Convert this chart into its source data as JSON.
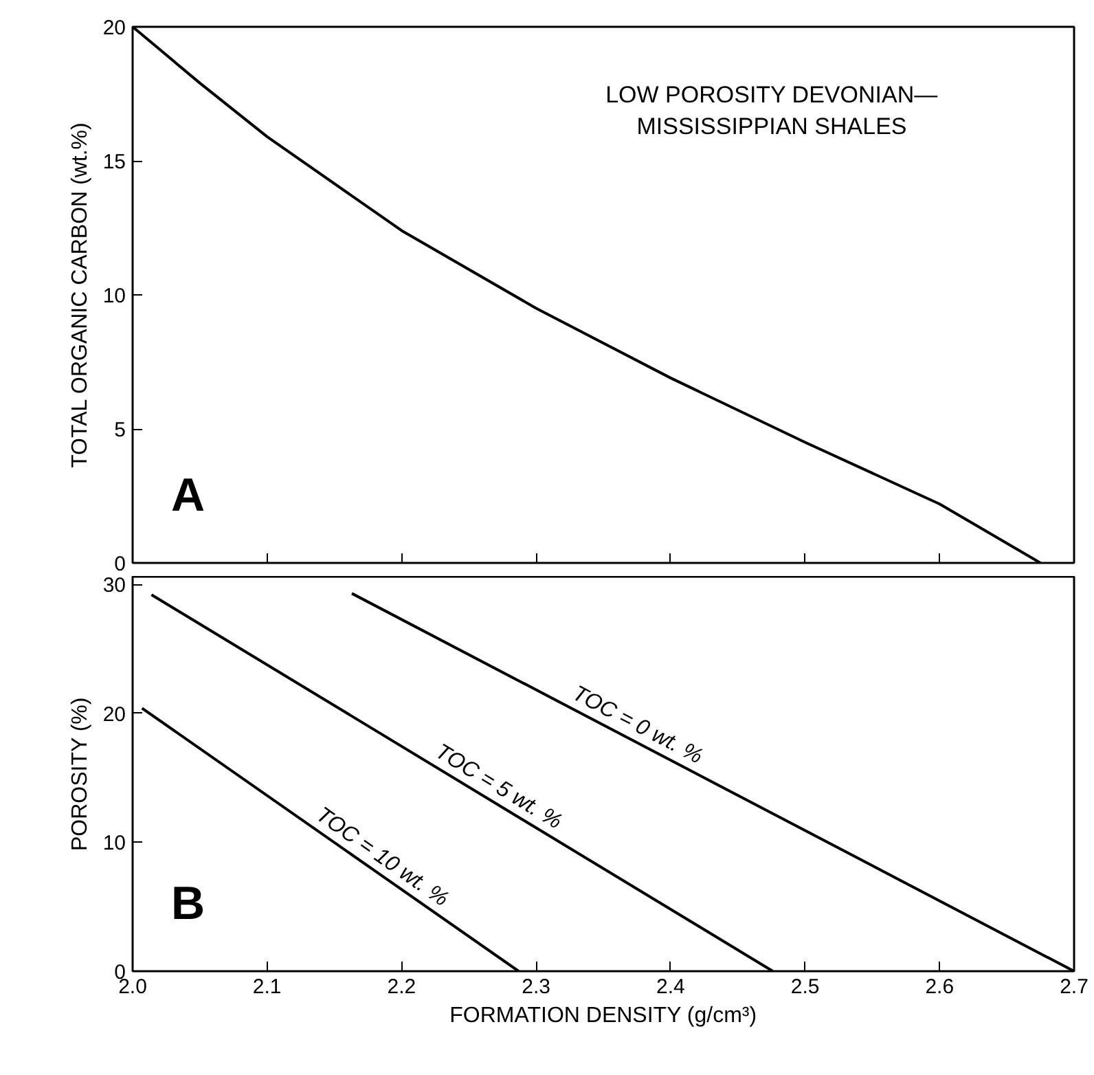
{
  "chart_data": [
    {
      "type": "line",
      "ylabel": "TOTAL ORGANIC CARBON (wt.%)",
      "annotations": [
        "LOW POROSITY DEVONIAN—\nMISSISSIPPIAN SHALES",
        "A"
      ],
      "xlim": [
        2.0,
        2.7
      ],
      "xticks": [
        2.0,
        2.1,
        2.2,
        2.3,
        2.4,
        2.5,
        2.6,
        2.7
      ],
      "ylim": [
        0,
        20
      ],
      "yticks": [
        0,
        5,
        10,
        15,
        20
      ],
      "tick_labels": "y",
      "grid": false,
      "series": [
        {
          "color": "#000000",
          "x": [
            2.0,
            2.05,
            2.1,
            2.2,
            2.3,
            2.4,
            2.5,
            2.6,
            2.675
          ],
          "values": [
            20,
            17.9,
            15.9,
            12.4,
            9.5,
            6.9,
            4.5,
            2.2,
            0
          ]
        }
      ]
    },
    {
      "type": "line",
      "xlabel": "FORMATION DENSITY (g/cm³)",
      "ylabel": "POROSITY (%)",
      "annotations": [
        "B"
      ],
      "xlim": [
        2.0,
        2.7
      ],
      "xticks": [
        {
          "value": 2.0,
          "label": "2.0"
        },
        2.1,
        2.2,
        2.3,
        2.4,
        2.5,
        2.6,
        2.7
      ],
      "ylim": [
        0,
        30.6
      ],
      "yticks": [
        0,
        10,
        20,
        30
      ],
      "grid": false,
      "series": [
        {
          "name": "TOC = 10 wt. %",
          "color": "#000000",
          "x": [
            2.007,
            2.287
          ],
          "values": [
            20.4,
            0
          ]
        },
        {
          "name": "TOC = 5 wt. %",
          "color": "#000000",
          "x": [
            2.014,
            2.476
          ],
          "values": [
            29.2,
            0
          ]
        },
        {
          "name": "TOC = 0 wt. %",
          "color": "#000000",
          "x": [
            2.163,
            2.7
          ],
          "values": [
            29.3,
            0
          ]
        }
      ]
    }
  ]
}
